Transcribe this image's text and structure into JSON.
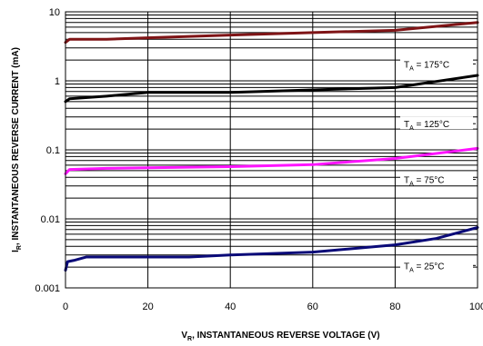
{
  "chart_data": {
    "type": "line",
    "title": "",
    "xlabel": {
      "main": "V",
      "sub": "R",
      "rest": ", INSTANTANEOUS REVERSE VOLTAGE (V)"
    },
    "ylabel": {
      "main": "I",
      "sub": "R",
      "rest": ", INSTANTANEOUS REVERSE CURRENT (mA)"
    },
    "xlim": [
      0,
      100
    ],
    "ylim": [
      0.001,
      10
    ],
    "yscale": "log",
    "grid": true,
    "x_ticks": [
      {
        "value": 0,
        "label": "0"
      },
      {
        "value": 20,
        "label": "20"
      },
      {
        "value": 40,
        "label": "40"
      },
      {
        "value": 60,
        "label": "60"
      },
      {
        "value": 80,
        "label": "80"
      },
      {
        "value": 100,
        "label": "100"
      }
    ],
    "y_ticks": [
      {
        "value": 0.001,
        "label": "0.001"
      },
      {
        "value": 0.01,
        "label": "0.01"
      },
      {
        "value": 0.1,
        "label": "0.1"
      },
      {
        "value": 1,
        "label": "1"
      },
      {
        "value": 10,
        "label": "10"
      }
    ],
    "series": [
      {
        "label": {
          "main": "T",
          "sub": "A",
          "rest": " = 175°C"
        },
        "color": "#7f1416",
        "x": [
          0,
          1,
          10,
          20,
          40,
          60,
          80,
          100
        ],
        "y": [
          3.6,
          4.0,
          4.0,
          4.2,
          4.6,
          5.0,
          5.4,
          7.0
        ]
      },
      {
        "label": {
          "main": "T",
          "sub": "A",
          "rest": " = 125°C"
        },
        "color": "#000000",
        "x": [
          0,
          1,
          10,
          20,
          40,
          60,
          80,
          100
        ],
        "y": [
          0.5,
          0.55,
          0.6,
          0.68,
          0.68,
          0.74,
          0.8,
          1.2
        ]
      },
      {
        "label": {
          "main": "T",
          "sub": "A",
          "rest": " = 75°C"
        },
        "color": "#ff14ff",
        "x": [
          0,
          1,
          10,
          20,
          40,
          60,
          80,
          100
        ],
        "y": [
          0.045,
          0.052,
          0.054,
          0.055,
          0.057,
          0.061,
          0.075,
          0.105
        ]
      },
      {
        "label": {
          "main": "T",
          "sub": "A",
          "rest": " = 25°C"
        },
        "color": "#0a0a78",
        "x": [
          0,
          0.5,
          2,
          5,
          10,
          20,
          30,
          40,
          60,
          80,
          90,
          100
        ],
        "y": [
          0.0018,
          0.0024,
          0.0025,
          0.0028,
          0.0028,
          0.0028,
          0.0028,
          0.003,
          0.0033,
          0.0042,
          0.0052,
          0.0075
        ]
      }
    ]
  }
}
